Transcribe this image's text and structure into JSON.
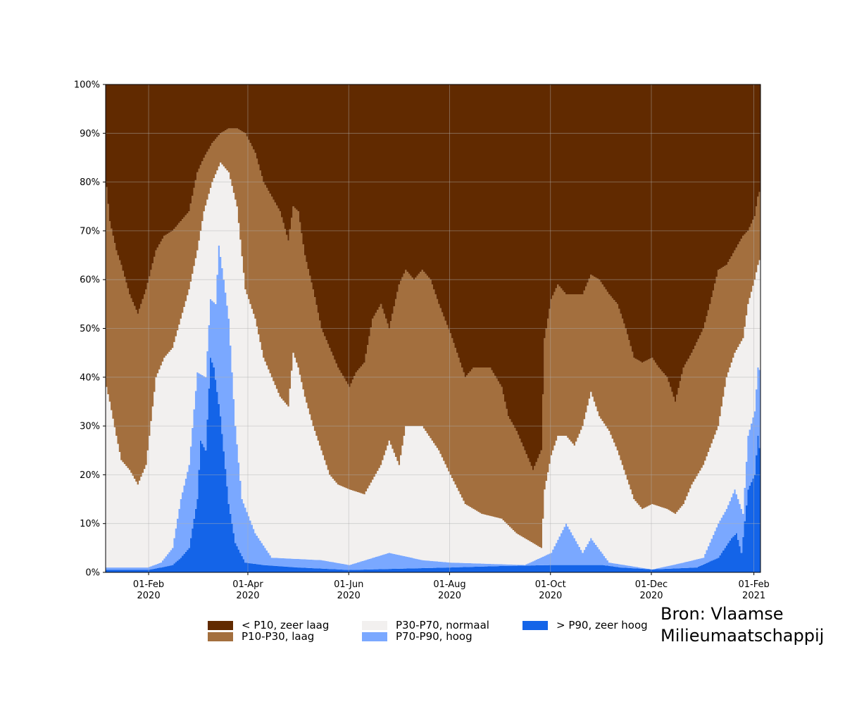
{
  "chart_data": {
    "type": "area",
    "stacked": true,
    "ylim": [
      0,
      100
    ],
    "y_ticks": [
      "0%",
      "10%",
      "20%",
      "30%",
      "40%",
      "50%",
      "60%",
      "70%",
      "80%",
      "90%",
      "100%"
    ],
    "x_ticks": [
      {
        "date": "2020-02-01",
        "label1": "01-Feb",
        "label2": "2020"
      },
      {
        "date": "2020-04-01",
        "label1": "01-Apr",
        "label2": "2020"
      },
      {
        "date": "2020-06-01",
        "label1": "01-Jun",
        "label2": "2020"
      },
      {
        "date": "2020-08-01",
        "label1": "01-Aug",
        "label2": "2020"
      },
      {
        "date": "2020-10-01",
        "label1": "01-Oct",
        "label2": "2020"
      },
      {
        "date": "2020-12-01",
        "label1": "01-Dec",
        "label2": "2020"
      },
      {
        "date": "2021-02-01",
        "label1": "01-Feb",
        "label2": "2021"
      }
    ],
    "x_range": [
      "2020-01-06",
      "2021-02-05"
    ],
    "grid": true,
    "legend_position": "bottom-center",
    "series_order_bottom_to_top": [
      "> P90, zeer hoog",
      "P70-P90, hoog",
      "P30-P70, normaal",
      "P10-P30, laag",
      "< P10, zeer laag"
    ],
    "colors": {
      "> P90, zeer hoog": "#1464e8",
      "P70-P90, hoog": "#7aa8ff",
      "P30-P70, normaal": "#f2f0ef",
      "P10-P30, laag": "#a36f3e",
      "< P10, zeer laag": "#612a00"
    },
    "boundary_series": [
      {
        "name": "> P90, zeer hoog",
        "upper": [
          [
            "2020-01-06",
            0.5
          ],
          [
            "2020-01-31",
            0.5
          ],
          [
            "2020-02-08",
            1
          ],
          [
            "2020-02-15",
            1.5
          ],
          [
            "2020-02-20",
            3
          ],
          [
            "2020-02-25",
            5
          ],
          [
            "2020-03-01",
            15
          ],
          [
            "2020-03-03",
            27
          ],
          [
            "2020-03-06",
            25
          ],
          [
            "2020-03-09",
            44
          ],
          [
            "2020-03-11",
            42
          ],
          [
            "2020-03-15",
            32
          ],
          [
            "2020-03-20",
            14
          ],
          [
            "2020-03-24",
            6
          ],
          [
            "2020-03-30",
            2
          ],
          [
            "2020-04-10",
            1.5
          ],
          [
            "2020-05-01",
            1
          ],
          [
            "2020-06-01",
            0.5
          ],
          [
            "2020-08-01",
            1
          ],
          [
            "2020-09-01",
            1.3
          ],
          [
            "2020-10-01",
            1.5
          ],
          [
            "2020-10-15",
            1.5
          ],
          [
            "2020-11-01",
            1.5
          ],
          [
            "2020-11-12",
            1.0
          ],
          [
            "2020-12-01",
            0.6
          ],
          [
            "2020-12-28",
            1
          ],
          [
            "2021-01-10",
            3
          ],
          [
            "2021-01-18",
            7
          ],
          [
            "2021-01-21",
            8
          ],
          [
            "2021-01-24",
            4
          ],
          [
            "2021-01-28",
            17
          ],
          [
            "2021-02-01",
            20
          ],
          [
            "2021-02-03",
            28
          ],
          [
            "2021-02-05",
            23
          ]
        ]
      },
      {
        "name": "P70-P90, hoog",
        "upper": [
          [
            "2020-01-06",
            1
          ],
          [
            "2020-01-31",
            1
          ],
          [
            "2020-02-08",
            2
          ],
          [
            "2020-02-15",
            5
          ],
          [
            "2020-02-20",
            15
          ],
          [
            "2020-02-25",
            22
          ],
          [
            "2020-03-01",
            41
          ],
          [
            "2020-03-06",
            40
          ],
          [
            "2020-03-09",
            56
          ],
          [
            "2020-03-12",
            55
          ],
          [
            "2020-03-14",
            67
          ],
          [
            "2020-03-17",
            60
          ],
          [
            "2020-03-20",
            52
          ],
          [
            "2020-03-24",
            30
          ],
          [
            "2020-03-28",
            15
          ],
          [
            "2020-04-05",
            8
          ],
          [
            "2020-04-15",
            3
          ],
          [
            "2020-05-15",
            2.5
          ],
          [
            "2020-06-01",
            1.5
          ],
          [
            "2020-06-25",
            4
          ],
          [
            "2020-07-15",
            2.5
          ],
          [
            "2020-08-01",
            2
          ],
          [
            "2020-09-15",
            1.5
          ],
          [
            "2020-10-01",
            4
          ],
          [
            "2020-10-10",
            10
          ],
          [
            "2020-10-20",
            4
          ],
          [
            "2020-10-25",
            7
          ],
          [
            "2020-11-05",
            2
          ],
          [
            "2020-12-01",
            0.6
          ],
          [
            "2020-12-20",
            2
          ],
          [
            "2021-01-01",
            3
          ],
          [
            "2021-01-10",
            10
          ],
          [
            "2021-01-15",
            13
          ],
          [
            "2021-01-20",
            17
          ],
          [
            "2021-01-25",
            12
          ],
          [
            "2021-01-28",
            28
          ],
          [
            "2021-02-01",
            33
          ],
          [
            "2021-02-03",
            42
          ],
          [
            "2021-02-05",
            41
          ]
        ]
      },
      {
        "name": "P30-P70, normaal",
        "upper": [
          [
            "2020-01-06",
            38
          ],
          [
            "2020-01-08",
            35
          ],
          [
            "2020-01-12",
            28
          ],
          [
            "2020-01-15",
            23
          ],
          [
            "2020-01-20",
            21
          ],
          [
            "2020-01-25",
            18
          ],
          [
            "2020-01-30",
            22
          ],
          [
            "2020-02-05",
            40
          ],
          [
            "2020-02-10",
            44
          ],
          [
            "2020-02-15",
            46
          ],
          [
            "2020-02-20",
            52
          ],
          [
            "2020-02-25",
            58
          ],
          [
            "2020-03-01",
            66
          ],
          [
            "2020-03-05",
            74
          ],
          [
            "2020-03-10",
            80
          ],
          [
            "2020-03-15",
            84
          ],
          [
            "2020-03-20",
            82
          ],
          [
            "2020-03-25",
            75
          ],
          [
            "2020-03-30",
            58
          ],
          [
            "2020-04-05",
            52
          ],
          [
            "2020-04-10",
            44
          ],
          [
            "2020-04-15",
            40
          ],
          [
            "2020-04-20",
            36
          ],
          [
            "2020-04-25",
            34
          ],
          [
            "2020-04-28",
            45
          ],
          [
            "2020-05-01",
            42
          ],
          [
            "2020-05-05",
            36
          ],
          [
            "2020-05-10",
            30
          ],
          [
            "2020-05-15",
            25
          ],
          [
            "2020-05-20",
            20
          ],
          [
            "2020-05-25",
            18
          ],
          [
            "2020-06-01",
            17
          ],
          [
            "2020-06-10",
            16
          ],
          [
            "2020-06-15",
            19
          ],
          [
            "2020-06-20",
            22
          ],
          [
            "2020-06-25",
            27
          ],
          [
            "2020-07-01",
            22
          ],
          [
            "2020-07-05",
            30
          ],
          [
            "2020-07-15",
            30
          ],
          [
            "2020-07-25",
            25
          ],
          [
            "2020-08-01",
            20
          ],
          [
            "2020-08-10",
            14
          ],
          [
            "2020-08-20",
            12
          ],
          [
            "2020-09-01",
            11
          ],
          [
            "2020-09-10",
            8
          ],
          [
            "2020-09-20",
            6
          ],
          [
            "2020-09-25",
            5
          ],
          [
            "2020-09-27",
            17
          ],
          [
            "2020-10-01",
            24
          ],
          [
            "2020-10-05",
            28
          ],
          [
            "2020-10-10",
            28
          ],
          [
            "2020-10-15",
            26
          ],
          [
            "2020-10-20",
            30
          ],
          [
            "2020-10-25",
            37
          ],
          [
            "2020-10-30",
            32
          ],
          [
            "2020-11-05",
            29
          ],
          [
            "2020-11-10",
            25
          ],
          [
            "2020-11-15",
            20
          ],
          [
            "2020-11-20",
            15
          ],
          [
            "2020-11-25",
            13
          ],
          [
            "2020-12-01",
            14
          ],
          [
            "2020-12-10",
            13
          ],
          [
            "2020-12-15",
            12
          ],
          [
            "2020-12-20",
            14
          ],
          [
            "2020-12-25",
            18
          ],
          [
            "2021-01-01",
            22
          ],
          [
            "2021-01-10",
            30
          ],
          [
            "2021-01-15",
            40
          ],
          [
            "2021-01-20",
            45
          ],
          [
            "2021-01-25",
            48
          ],
          [
            "2021-01-28",
            55
          ],
          [
            "2021-02-01",
            60
          ],
          [
            "2021-02-03",
            63
          ],
          [
            "2021-02-05",
            65
          ]
        ]
      },
      {
        "name": "P10-P30, laag",
        "upper": [
          [
            "2020-01-06",
            79
          ],
          [
            "2020-01-08",
            72
          ],
          [
            "2020-01-12",
            66
          ],
          [
            "2020-01-15",
            63
          ],
          [
            "2020-01-20",
            57
          ],
          [
            "2020-01-25",
            53
          ],
          [
            "2020-01-30",
            58
          ],
          [
            "2020-02-05",
            66
          ],
          [
            "2020-02-10",
            69
          ],
          [
            "2020-02-15",
            70
          ],
          [
            "2020-02-20",
            72
          ],
          [
            "2020-02-25",
            74
          ],
          [
            "2020-03-01",
            82
          ],
          [
            "2020-03-05",
            85
          ],
          [
            "2020-03-10",
            88
          ],
          [
            "2020-03-15",
            90
          ],
          [
            "2020-03-20",
            91
          ],
          [
            "2020-03-25",
            91
          ],
          [
            "2020-03-30",
            90
          ],
          [
            "2020-04-05",
            86
          ],
          [
            "2020-04-10",
            80
          ],
          [
            "2020-04-15",
            77
          ],
          [
            "2020-04-20",
            74
          ],
          [
            "2020-04-25",
            68
          ],
          [
            "2020-04-28",
            75
          ],
          [
            "2020-05-01",
            74
          ],
          [
            "2020-05-05",
            65
          ],
          [
            "2020-05-10",
            58
          ],
          [
            "2020-05-15",
            50
          ],
          [
            "2020-05-20",
            46
          ],
          [
            "2020-05-25",
            42
          ],
          [
            "2020-06-01",
            38
          ],
          [
            "2020-06-05",
            41
          ],
          [
            "2020-06-10",
            43
          ],
          [
            "2020-06-15",
            52
          ],
          [
            "2020-06-20",
            55
          ],
          [
            "2020-06-25",
            50
          ],
          [
            "2020-07-01",
            59
          ],
          [
            "2020-07-05",
            62
          ],
          [
            "2020-07-10",
            60
          ],
          [
            "2020-07-15",
            62
          ],
          [
            "2020-07-20",
            60
          ],
          [
            "2020-07-25",
            55
          ],
          [
            "2020-08-01",
            49
          ],
          [
            "2020-08-10",
            40
          ],
          [
            "2020-08-15",
            42
          ],
          [
            "2020-08-20",
            42
          ],
          [
            "2020-08-25",
            42
          ],
          [
            "2020-09-01",
            38
          ],
          [
            "2020-09-05",
            32
          ],
          [
            "2020-09-10",
            29
          ],
          [
            "2020-09-15",
            25
          ],
          [
            "2020-09-20",
            21
          ],
          [
            "2020-09-25",
            25
          ],
          [
            "2020-09-27",
            48
          ],
          [
            "2020-10-01",
            56
          ],
          [
            "2020-10-05",
            59
          ],
          [
            "2020-10-10",
            57
          ],
          [
            "2020-10-15",
            57
          ],
          [
            "2020-10-20",
            57
          ],
          [
            "2020-10-25",
            61
          ],
          [
            "2020-10-30",
            60
          ],
          [
            "2020-11-05",
            57
          ],
          [
            "2020-11-10",
            55
          ],
          [
            "2020-11-15",
            50
          ],
          [
            "2020-11-20",
            44
          ],
          [
            "2020-11-25",
            43
          ],
          [
            "2020-12-01",
            44
          ],
          [
            "2020-12-05",
            42
          ],
          [
            "2020-12-10",
            40
          ],
          [
            "2020-12-15",
            35
          ],
          [
            "2020-12-20",
            42
          ],
          [
            "2020-12-25",
            45
          ],
          [
            "2021-01-01",
            50
          ],
          [
            "2021-01-05",
            55
          ],
          [
            "2021-01-10",
            62
          ],
          [
            "2021-01-15",
            63
          ],
          [
            "2021-01-20",
            66
          ],
          [
            "2021-01-25",
            69
          ],
          [
            "2021-01-28",
            70
          ],
          [
            "2021-02-01",
            73
          ],
          [
            "2021-02-03",
            77
          ],
          [
            "2021-02-05",
            79
          ]
        ]
      },
      {
        "name": "< P10, zeer laag",
        "upper": [
          [
            "2020-01-06",
            100
          ],
          [
            "2021-02-05",
            100
          ]
        ]
      }
    ]
  },
  "legend": {
    "items": [
      {
        "label": "< P10, zeer laag",
        "color": "#612a00"
      },
      {
        "label": "P10-P30, laag",
        "color": "#a36f3e"
      },
      {
        "label": "P30-P70, normaal",
        "color": "#f2f0ef"
      },
      {
        "label": "P70-P90, hoog",
        "color": "#7aa8ff"
      },
      {
        "label": "> P90, zeer hoog",
        "color": "#1464e8"
      }
    ]
  },
  "source": {
    "line1": "Bron: Vlaamse",
    "line2": "Milieumaatschappij"
  }
}
